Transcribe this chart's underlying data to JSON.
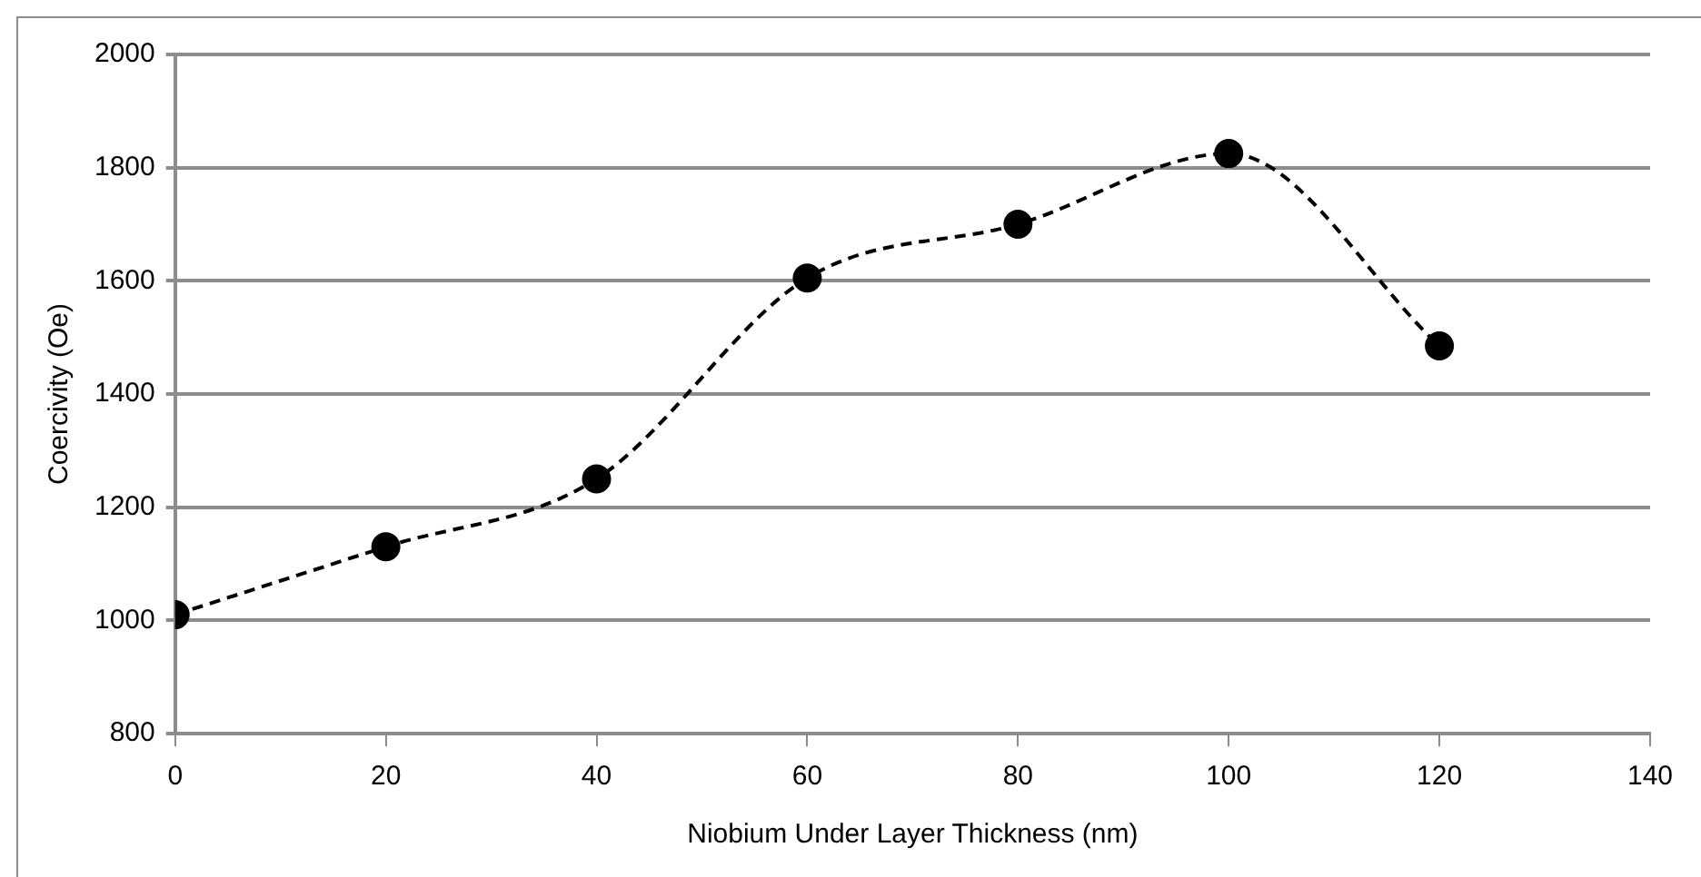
{
  "chart_data": {
    "type": "line",
    "xlabel": "Niobium Under Layer Thickness (nm)",
    "ylabel": "Coercivity (Oe)",
    "x": [
      0,
      20,
      40,
      60,
      80,
      100,
      120
    ],
    "series": [
      {
        "color": "#000000",
        "values": [
          1010,
          1130,
          1250,
          1605,
          1700,
          1825,
          1485
        ]
      }
    ],
    "xlim": [
      0,
      140
    ],
    "xticks": [
      0,
      20,
      40,
      60,
      80,
      100,
      120,
      140
    ],
    "ylim": [
      800,
      2000
    ],
    "yticks": [
      800,
      1000,
      1200,
      1400,
      1600,
      1800,
      2000
    ],
    "grid": "y",
    "legend": false,
    "marker": "circle",
    "line_style": "dashed"
  }
}
